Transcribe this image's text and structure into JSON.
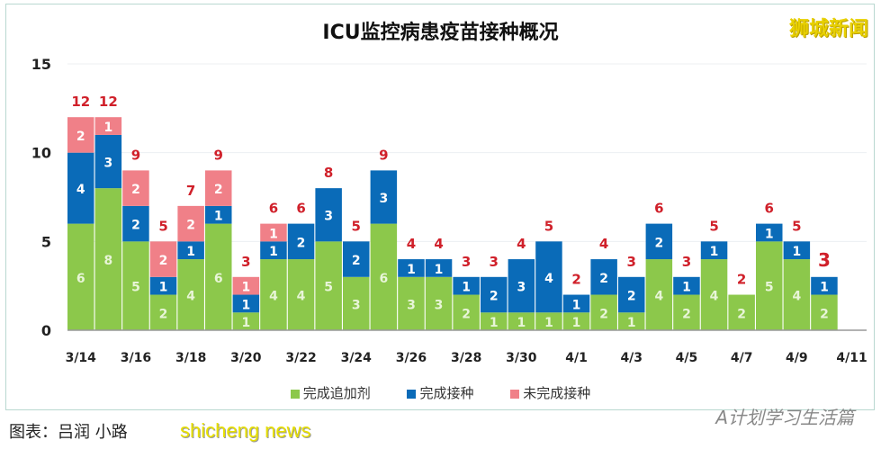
{
  "chart_data": {
    "type": "bar",
    "stacked": true,
    "title": "ICU监控病患疫苗接种概况",
    "categories": [
      "3/14",
      "3/15",
      "3/16",
      "3/17",
      "3/18",
      "3/19",
      "3/20",
      "3/21",
      "3/22",
      "3/23",
      "3/24",
      "3/25",
      "3/26",
      "3/27",
      "3/28",
      "3/29",
      "3/30",
      "3/31",
      "4/1",
      "4/2",
      "4/3",
      "4/4",
      "4/5",
      "4/6",
      "4/7",
      "4/8",
      "4/9",
      "4/10"
    ],
    "tick_labels": [
      "3/14",
      "3/16",
      "3/18",
      "3/20",
      "3/22",
      "3/24",
      "3/26",
      "3/28",
      "3/30",
      "4/1",
      "4/3",
      "4/5",
      "4/7",
      "4/9",
      "4/11"
    ],
    "series": [
      {
        "name": "完成追加剂",
        "color": "#8cc84b",
        "values": [
          6,
          8,
          5,
          2,
          4,
          6,
          1,
          4,
          4,
          5,
          3,
          6,
          3,
          3,
          2,
          1,
          1,
          1,
          1,
          2,
          1,
          4,
          2,
          4,
          2,
          5,
          4,
          2
        ]
      },
      {
        "name": "完成接种",
        "color": "#0a6bb8",
        "values": [
          4,
          3,
          2,
          1,
          1,
          1,
          1,
          1,
          2,
          3,
          2,
          3,
          1,
          1,
          1,
          2,
          3,
          4,
          1,
          2,
          2,
          2,
          1,
          1,
          0,
          1,
          1,
          1
        ]
      },
      {
        "name": "未完成接种",
        "color": "#f08088",
        "values": [
          2,
          1,
          2,
          2,
          2,
          2,
          1,
          1,
          0,
          0,
          0,
          0,
          0,
          0,
          0,
          0,
          0,
          0,
          0,
          0,
          0,
          0,
          0,
          0,
          0,
          0,
          0,
          0
        ]
      }
    ],
    "totals": [
      12,
      12,
      9,
      5,
      7,
      9,
      3,
      6,
      6,
      8,
      5,
      9,
      4,
      4,
      3,
      3,
      4,
      5,
      2,
      4,
      3,
      6,
      3,
      5,
      2,
      6,
      5,
      3
    ],
    "yticks": [
      0,
      5,
      10,
      15
    ],
    "ylim": [
      0,
      15
    ],
    "grid": true,
    "legend": "bottom",
    "total_label_color": "#d0202a"
  },
  "brand": "狮城新闻",
  "caption": "图表：吕润 小路",
  "watermark_shicheng": "shicheng news",
  "watermark_account": "A计划学习生活篇"
}
